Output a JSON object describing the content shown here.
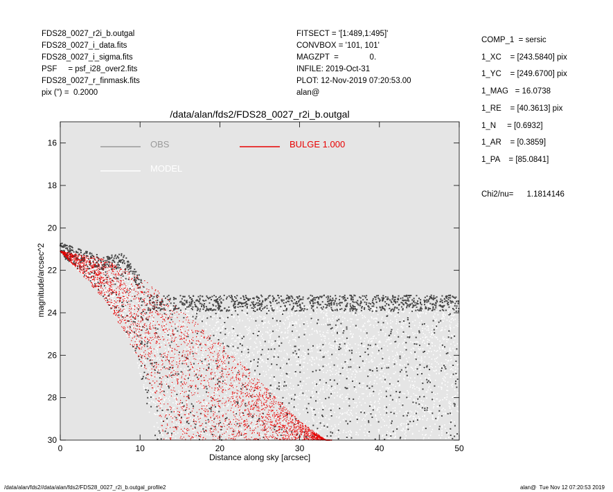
{
  "header": {
    "left": [
      "FDS28_0027_r2i_b.outgal",
      "FDS28_0027_i_data.fits",
      "FDS28_0027_i_sigma.fits",
      "PSF     = psf_i28_over2.fits",
      "FDS28_0027_r_finmask.fits",
      "pix (\") =  0.2000"
    ],
    "middle": [
      "FITSECT = '[1:489,1:495]'",
      "CONVBOX = '101, 101'",
      "MAGZPT  =              0.",
      "INFILE: 2019-Oct-31",
      "PLOT: 12-Nov-2019 07:20:53.00",
      "alan@"
    ],
    "right": [
      "COMP_1  = sersic",
      "1_XC    = [243.5840] pix",
      "1_YC    = [249.6700] pix",
      "1_MAG   = 16.0738",
      "1_RE    = [40.3613] pix",
      "1_N     = [0.6932]",
      "1_AR    = [0.3859]",
      "1_PA    = [85.0841]"
    ],
    "chi2": "Chi2/nu=      1.1814146"
  },
  "footer": {
    "left": "/data/alan/fds2//data/alan/fds2/FDS28_0027_r2i_b.outgal_profile2",
    "right": "alan@  Tue Nov 12 07:20:53 2019"
  },
  "colors": {
    "background": "#e5e5e5",
    "obs": "#444444",
    "model": "#ffffff",
    "bulge": "#e80000",
    "obs_legend": "#999999"
  },
  "chart_data": {
    "type": "scatter",
    "title": "/data/alan/fds2/FDS28_0027_r2i_b.outgal",
    "xlabel": "Distance along sky [arcsec]",
    "ylabel": "magnitude/arcsec^2",
    "xlim": [
      0,
      50
    ],
    "ylim": [
      30,
      15
    ],
    "y_inverted": true,
    "x_ticks": [
      "0",
      "10",
      "20",
      "30",
      "40",
      "50"
    ],
    "y_ticks": [
      "16",
      "18",
      "20",
      "22",
      "24",
      "26",
      "28",
      "30"
    ],
    "grid": false,
    "legend": [
      {
        "label": "OBS",
        "color": "#999999"
      },
      {
        "label": "MODEL",
        "color": "#ffffff"
      },
      {
        "label": "BULGE  1.000",
        "color": "#e80000"
      }
    ],
    "series": [
      {
        "name": "OBS",
        "description": "observed pixel values, dense band from ~21 mag at r=0 rising to sky level ~23.6-24 at r>12",
        "envelope_top": [
          [
            0,
            20.7
          ],
          [
            5,
            21.3
          ],
          [
            8,
            21.2
          ],
          [
            9,
            21.8
          ],
          [
            12,
            23.2
          ],
          [
            20,
            23.4
          ],
          [
            50,
            23.3
          ]
        ],
        "envelope_bottom": [
          [
            0,
            21.2
          ],
          [
            5,
            23.0
          ],
          [
            9,
            25.5
          ],
          [
            12,
            30
          ],
          [
            50,
            30
          ]
        ]
      },
      {
        "name": "MODEL",
        "description": "model pixel values, white points spanning the same region"
      },
      {
        "name": "BULGE  1.000",
        "description": "red sersic bulge component profile band",
        "upper_edge": [
          [
            0,
            21.1
          ],
          [
            5,
            21.4
          ],
          [
            10,
            22.3
          ],
          [
            15,
            23.8
          ],
          [
            20,
            25.4
          ],
          [
            25,
            27.2
          ],
          [
            30,
            29.1
          ],
          [
            33.3,
            30
          ]
        ],
        "lower_edge": [
          [
            0,
            21.1
          ],
          [
            2,
            21.9
          ],
          [
            6,
            23.6
          ],
          [
            10,
            26.3
          ],
          [
            12,
            28.1
          ],
          [
            13,
            30
          ]
        ]
      }
    ]
  }
}
